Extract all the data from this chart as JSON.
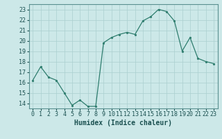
{
  "x": [
    0,
    1,
    2,
    3,
    4,
    5,
    6,
    7,
    8,
    9,
    10,
    11,
    12,
    13,
    14,
    15,
    16,
    17,
    18,
    19,
    20,
    21,
    22,
    23
  ],
  "y": [
    16.2,
    17.5,
    16.5,
    16.2,
    15.0,
    13.8,
    14.3,
    13.7,
    13.7,
    19.8,
    20.3,
    20.6,
    20.8,
    20.6,
    21.9,
    22.3,
    23.0,
    22.8,
    21.9,
    19.0,
    20.3,
    18.3,
    18.0,
    17.8
  ],
  "xlabel": "Humidex (Indice chaleur)",
  "ylim": [
    13.5,
    23.5
  ],
  "xlim": [
    -0.5,
    23.5
  ],
  "yticks": [
    14,
    15,
    16,
    17,
    18,
    19,
    20,
    21,
    22,
    23
  ],
  "xticks": [
    0,
    1,
    2,
    3,
    4,
    5,
    6,
    7,
    8,
    9,
    10,
    11,
    12,
    13,
    14,
    15,
    16,
    17,
    18,
    19,
    20,
    21,
    22,
    23
  ],
  "line_color": "#2e7d6e",
  "marker_color": "#2e7d6e",
  "bg_color": "#cce8e8",
  "grid_color": "#aacfcf",
  "axis_bg": "#cce8e8",
  "xlabel_fontsize": 7,
  "tick_fontsize": 6
}
